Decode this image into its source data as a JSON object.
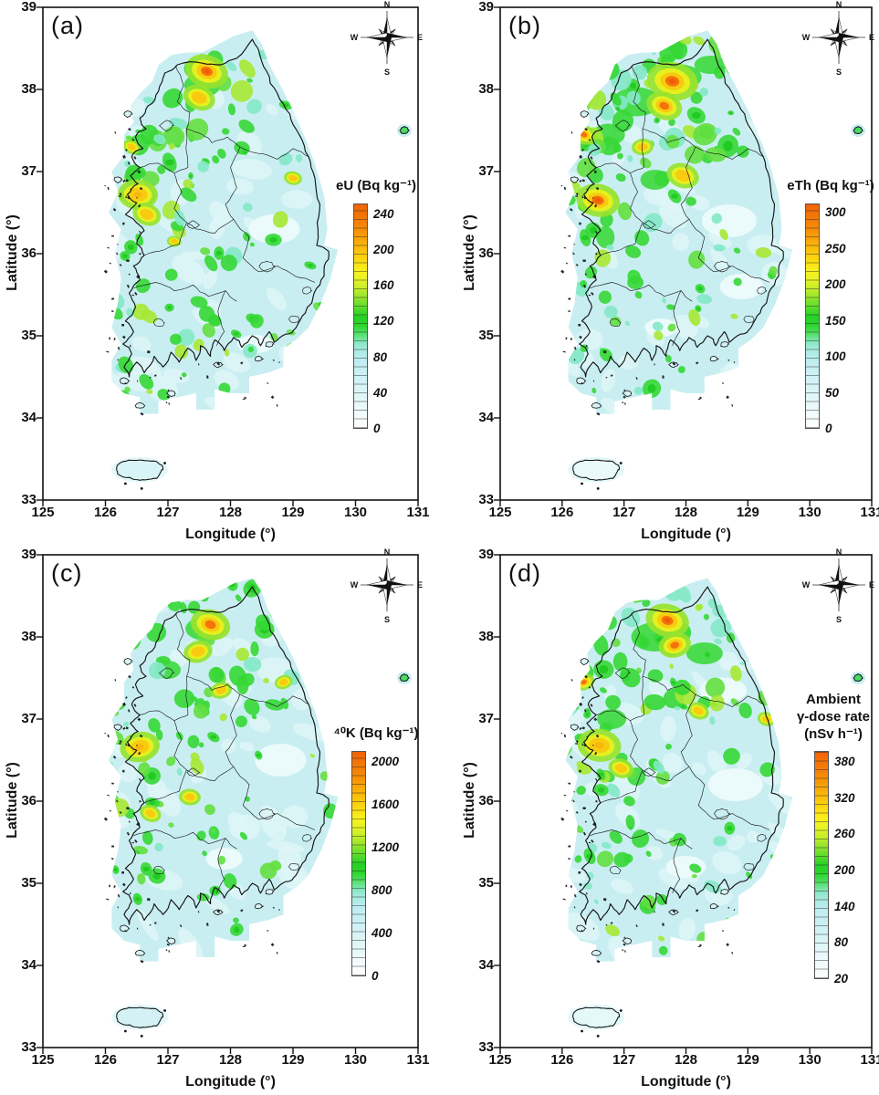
{
  "axes": {
    "xlabel": "Longitude (°)",
    "ylabel": "Latitude (°)",
    "x_ticks": [
      "125",
      "126",
      "127",
      "128",
      "129",
      "130",
      "131"
    ],
    "y_ticks": [
      "39",
      "38",
      "37",
      "36",
      "35",
      "34",
      "33"
    ]
  },
  "compass": {
    "north": "N",
    "east": "E",
    "south": "S",
    "west": "W"
  },
  "panels": [
    {
      "label": "(a)",
      "colorbar": {
        "title": "eU (Bq kg⁻¹)",
        "tick_labels": [
          "240",
          "200",
          "160",
          "120",
          "80",
          "40",
          "0"
        ]
      }
    },
    {
      "label": "(b)",
      "colorbar": {
        "title": "eTh (Bq kg⁻¹)",
        "tick_labels": [
          "300",
          "250",
          "200",
          "150",
          "100",
          "50",
          "0"
        ]
      }
    },
    {
      "label": "(c)",
      "colorbar": {
        "title": "⁴⁰K (Bq kg⁻¹)",
        "tick_labels": [
          "2000",
          "1600",
          "1200",
          "800",
          "400",
          "0"
        ]
      }
    },
    {
      "label": "(d)",
      "colorbar": {
        "title": "Ambient\nγ-dose rate\n(nSv h⁻¹)",
        "tick_labels": [
          "380",
          "320",
          "260",
          "200",
          "140",
          "80",
          "20"
        ]
      }
    }
  ],
  "scale_colors": {
    "low": "#ffffff",
    "cyan": "#c9eef2",
    "green": "#2ed32e",
    "yellow": "#f6ef1b",
    "orange": "#f2690a"
  }
}
